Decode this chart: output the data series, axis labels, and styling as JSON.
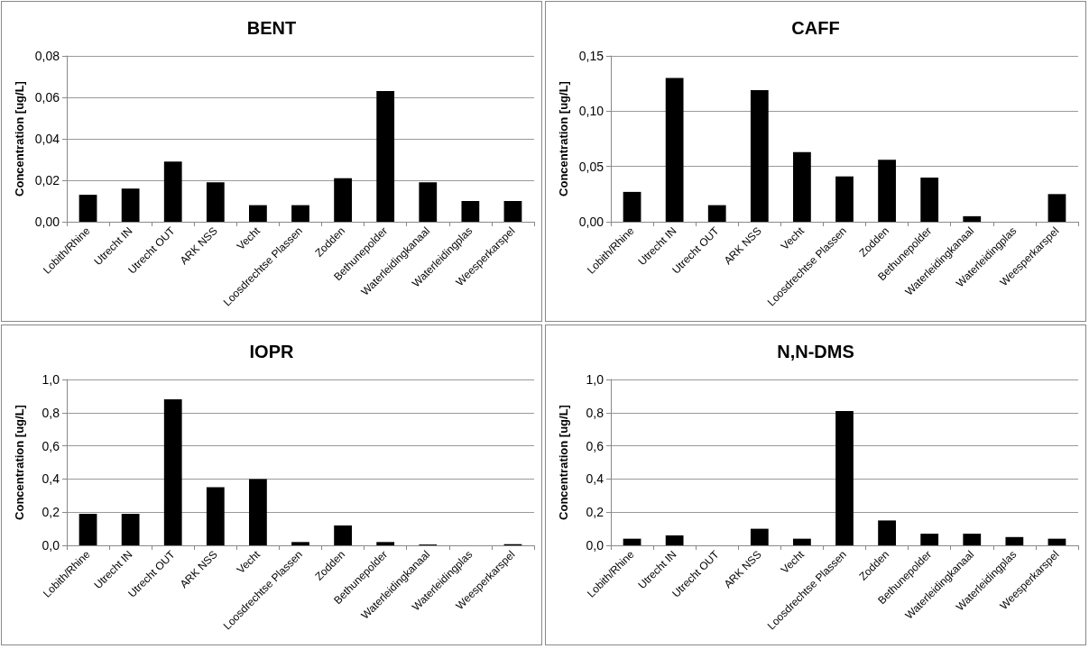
{
  "chart_data": [
    {
      "type": "bar",
      "title": "BENT",
      "ylabel": "Concentration [ug/L]",
      "categories": [
        "Lobith/Rhine",
        "Utrecht IN",
        "Utrecht OUT",
        "ARK NSS",
        "Vecht",
        "Loosdrechtse Plassen",
        "Zodden",
        "Bethunepolder",
        "Waterleidingkanaal",
        "Waterleidingplas",
        "Weesperkarspel"
      ],
      "values": [
        0.013,
        0.016,
        0.029,
        0.019,
        0.008,
        0.008,
        0.021,
        0.063,
        0.019,
        0.01,
        0.01
      ],
      "color": "#000000",
      "ylim": [
        0,
        0.08
      ],
      "yticks": [
        {
          "value": 0,
          "label": "0,00"
        },
        {
          "value": 0.02,
          "label": "0,02"
        },
        {
          "value": 0.04,
          "label": "0,04"
        },
        {
          "value": 0.06,
          "label": "0,06"
        },
        {
          "value": 0.08,
          "label": "0,08"
        }
      ],
      "grid": "y"
    },
    {
      "type": "bar",
      "title": "CAFF",
      "ylabel": "Concentration [ug/L]",
      "categories": [
        "Lobith/Rhine",
        "Utrecht IN",
        "Utrecht OUT",
        "ARK NSS",
        "Vecht",
        "Loosdrechtse Plassen",
        "Zodden",
        "Bethunepolder",
        "Waterleidingkanaal",
        "Waterleidingplas",
        "Weesperkarspel"
      ],
      "values": [
        0.027,
        0.13,
        0.015,
        0.119,
        0.063,
        0.041,
        0.056,
        0.04,
        0.005,
        0,
        0.025
      ],
      "color": "#000000",
      "ylim": [
        0,
        0.15
      ],
      "yticks": [
        {
          "value": 0,
          "label": "0,00"
        },
        {
          "value": 0.05,
          "label": "0,05"
        },
        {
          "value": 0.1,
          "label": "0,10"
        },
        {
          "value": 0.15,
          "label": "0,15"
        }
      ],
      "grid": "y"
    },
    {
      "type": "bar",
      "title": "IOPR",
      "ylabel": "Concentration [ug/L]",
      "categories": [
        "Lobith/Rhine",
        "Utrecht IN",
        "Utrecht OUT",
        "ARK NSS",
        "Vecht",
        "Loosdrechtse Plassen",
        "Zodden",
        "Bethunepolder",
        "Waterleidingkanaal",
        "Waterleidingplas",
        "Weesperkarspel"
      ],
      "values": [
        0.19,
        0.19,
        0.88,
        0.35,
        0.4,
        0.02,
        0.12,
        0.02,
        0.005,
        0,
        0.007
      ],
      "color": "#000000",
      "ylim": [
        0,
        1.0
      ],
      "yticks": [
        {
          "value": 0,
          "label": "0,0"
        },
        {
          "value": 0.2,
          "label": "0,2"
        },
        {
          "value": 0.4,
          "label": "0,4"
        },
        {
          "value": 0.6,
          "label": "0,6"
        },
        {
          "value": 0.8,
          "label": "0,8"
        },
        {
          "value": 1.0,
          "label": "1,0"
        }
      ],
      "grid": "y"
    },
    {
      "type": "bar",
      "title": "N,N-DMS",
      "ylabel": "Concentration [ug/L]",
      "categories": [
        "Lobith/Rhine",
        "Utrecht IN",
        "Utrecht OUT",
        "ARK NSS",
        "Vecht",
        "Loosdrechtse Plassen",
        "Zodden",
        "Bethunepolder",
        "Waterleidingkanaal",
        "Waterleidingplas",
        "Weesperkarspel"
      ],
      "values": [
        0.04,
        0.06,
        0,
        0.1,
        0.04,
        0.81,
        0.15,
        0.07,
        0.07,
        0.05,
        0.04
      ],
      "color": "#000000",
      "ylim": [
        0,
        1.0
      ],
      "yticks": [
        {
          "value": 0,
          "label": "0,0"
        },
        {
          "value": 0.2,
          "label": "0,2"
        },
        {
          "value": 0.4,
          "label": "0,4"
        },
        {
          "value": 0.6,
          "label": "0,6"
        },
        {
          "value": 0.8,
          "label": "0,8"
        },
        {
          "value": 1.0,
          "label": "1,0"
        }
      ],
      "grid": "y"
    }
  ]
}
